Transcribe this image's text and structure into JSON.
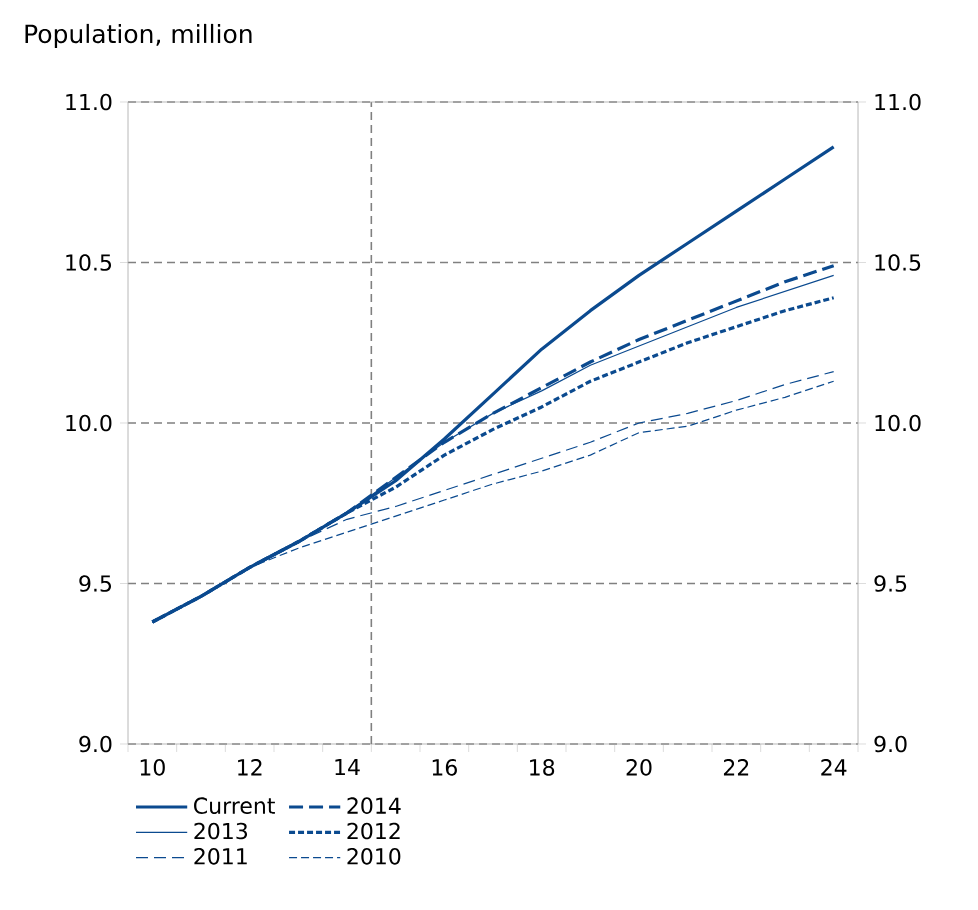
{
  "chart_data": {
    "type": "line",
    "title": "Population, million",
    "x": [
      10,
      11,
      12,
      13,
      14,
      15,
      16,
      17,
      18,
      19,
      20,
      21,
      22,
      23,
      24
    ],
    "xlim": [
      9.5,
      24.5
    ],
    "xticks": [
      {
        "value": 9.5,
        "label": null
      },
      {
        "value": 10,
        "label": "10"
      },
      {
        "value": 10.5,
        "label": null
      },
      {
        "value": 11.5,
        "label": null
      },
      {
        "value": 12,
        "label": "12"
      },
      {
        "value": 12.5,
        "label": null
      },
      {
        "value": 13.5,
        "label": null
      },
      {
        "value": 14,
        "label": "14"
      },
      {
        "value": 14.5,
        "label": null
      },
      {
        "value": 15.5,
        "label": null
      },
      {
        "value": 16,
        "label": "16"
      },
      {
        "value": 16.5,
        "label": null
      },
      {
        "value": 17.5,
        "label": null
      },
      {
        "value": 18,
        "label": "18"
      },
      {
        "value": 18.5,
        "label": null
      },
      {
        "value": 19.5,
        "label": null
      },
      {
        "value": 20,
        "label": "20"
      },
      {
        "value": 20.5,
        "label": null
      },
      {
        "value": 21.5,
        "label": null
      },
      {
        "value": 22,
        "label": "22"
      },
      {
        "value": 22.5,
        "label": null
      },
      {
        "value": 23.5,
        "label": null
      },
      {
        "value": 24,
        "label": "24"
      },
      {
        "value": 24.5,
        "label": null
      }
    ],
    "ylim": [
      9.0,
      11.0
    ],
    "yticks": [
      {
        "value": 9.0,
        "label": "9.0"
      },
      {
        "value": 9.5,
        "label": "9.5"
      },
      {
        "value": 10.0,
        "label": "10.0"
      },
      {
        "value": 10.5,
        "label": "10.5"
      },
      {
        "value": 11.0,
        "label": "11.0"
      }
    ],
    "y2lim": [
      9.0,
      11.0
    ],
    "y2ticks": [
      {
        "value": 9.0,
        "label": "9.0"
      },
      {
        "value": 9.5,
        "label": "9.5"
      },
      {
        "value": 10.0,
        "label": "10.0"
      },
      {
        "value": 10.5,
        "label": "10.5"
      },
      {
        "value": 11.0,
        "label": "11.0"
      }
    ],
    "grid": "y",
    "legend": "bottom",
    "marker": "none",
    "ref_lines": [
      {
        "axis": "x",
        "value": 14.5,
        "color": "#808080",
        "line_style": "dashed"
      }
    ],
    "series": [
      {
        "name": "Current",
        "color": "#0b4a8f",
        "line_style": "solid",
        "values": [
          9.38,
          9.46,
          9.55,
          9.63,
          9.72,
          9.82,
          9.95,
          10.09,
          10.23,
          10.35,
          10.46,
          10.56,
          10.66,
          10.76,
          10.86
        ]
      },
      {
        "name": "2014",
        "color": "#0b4a8f",
        "line_style": "dashed",
        "values": [
          9.38,
          9.46,
          9.55,
          9.63,
          9.72,
          9.83,
          9.94,
          10.03,
          10.11,
          10.19,
          10.26,
          10.32,
          10.38,
          10.44,
          10.49
        ]
      },
      {
        "name": "2013",
        "color": "#0b4a8f",
        "line_style": "solid",
        "values": [
          9.38,
          9.46,
          9.55,
          9.63,
          9.72,
          9.83,
          9.94,
          10.03,
          10.1,
          10.18,
          10.24,
          10.3,
          10.36,
          10.41,
          10.46
        ]
      },
      {
        "name": "2012",
        "color": "#0b4a8f",
        "line_style": "dotted",
        "values": [
          9.38,
          9.46,
          9.55,
          9.63,
          9.72,
          9.8,
          9.9,
          9.98,
          10.05,
          10.13,
          10.19,
          10.25,
          10.3,
          10.35,
          10.39
        ]
      },
      {
        "name": "2011",
        "color": "#0b4a8f",
        "line_style": "dashed",
        "values": [
          9.38,
          9.46,
          9.55,
          9.63,
          9.7,
          9.74,
          9.79,
          9.84,
          9.89,
          9.94,
          10.0,
          10.03,
          10.07,
          10.12,
          10.16
        ]
      },
      {
        "name": "2010",
        "color": "#0b4a8f",
        "line_style": "dashed",
        "values": [
          9.38,
          9.46,
          9.55,
          9.61,
          9.66,
          9.71,
          9.76,
          9.81,
          9.85,
          9.9,
          9.97,
          9.99,
          10.04,
          10.08,
          10.13
        ]
      }
    ]
  }
}
